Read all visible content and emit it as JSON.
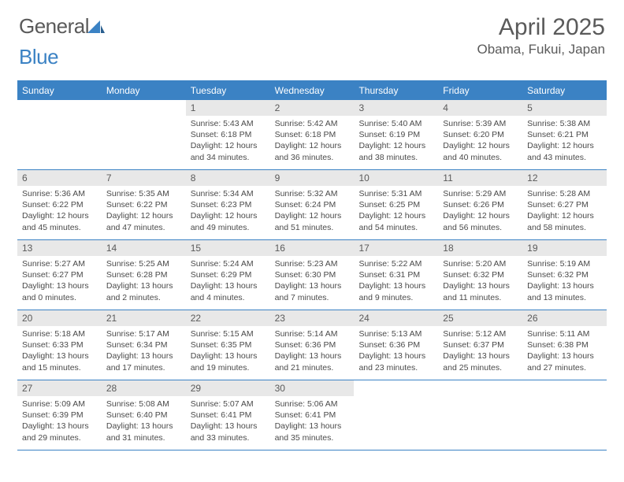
{
  "brand": {
    "part1": "General",
    "part2": "Blue"
  },
  "title": "April 2025",
  "location": "Obama, Fukui, Japan",
  "header_bg": "#3b82c4",
  "daynum_bg": "#e8e8e8",
  "weekdays": [
    "Sunday",
    "Monday",
    "Tuesday",
    "Wednesday",
    "Thursday",
    "Friday",
    "Saturday"
  ],
  "weeks": [
    [
      null,
      null,
      {
        "n": "1",
        "sr": "Sunrise: 5:43 AM",
        "ss": "Sunset: 6:18 PM",
        "dl": "Daylight: 12 hours and 34 minutes."
      },
      {
        "n": "2",
        "sr": "Sunrise: 5:42 AM",
        "ss": "Sunset: 6:18 PM",
        "dl": "Daylight: 12 hours and 36 minutes."
      },
      {
        "n": "3",
        "sr": "Sunrise: 5:40 AM",
        "ss": "Sunset: 6:19 PM",
        "dl": "Daylight: 12 hours and 38 minutes."
      },
      {
        "n": "4",
        "sr": "Sunrise: 5:39 AM",
        "ss": "Sunset: 6:20 PM",
        "dl": "Daylight: 12 hours and 40 minutes."
      },
      {
        "n": "5",
        "sr": "Sunrise: 5:38 AM",
        "ss": "Sunset: 6:21 PM",
        "dl": "Daylight: 12 hours and 43 minutes."
      }
    ],
    [
      {
        "n": "6",
        "sr": "Sunrise: 5:36 AM",
        "ss": "Sunset: 6:22 PM",
        "dl": "Daylight: 12 hours and 45 minutes."
      },
      {
        "n": "7",
        "sr": "Sunrise: 5:35 AM",
        "ss": "Sunset: 6:22 PM",
        "dl": "Daylight: 12 hours and 47 minutes."
      },
      {
        "n": "8",
        "sr": "Sunrise: 5:34 AM",
        "ss": "Sunset: 6:23 PM",
        "dl": "Daylight: 12 hours and 49 minutes."
      },
      {
        "n": "9",
        "sr": "Sunrise: 5:32 AM",
        "ss": "Sunset: 6:24 PM",
        "dl": "Daylight: 12 hours and 51 minutes."
      },
      {
        "n": "10",
        "sr": "Sunrise: 5:31 AM",
        "ss": "Sunset: 6:25 PM",
        "dl": "Daylight: 12 hours and 54 minutes."
      },
      {
        "n": "11",
        "sr": "Sunrise: 5:29 AM",
        "ss": "Sunset: 6:26 PM",
        "dl": "Daylight: 12 hours and 56 minutes."
      },
      {
        "n": "12",
        "sr": "Sunrise: 5:28 AM",
        "ss": "Sunset: 6:27 PM",
        "dl": "Daylight: 12 hours and 58 minutes."
      }
    ],
    [
      {
        "n": "13",
        "sr": "Sunrise: 5:27 AM",
        "ss": "Sunset: 6:27 PM",
        "dl": "Daylight: 13 hours and 0 minutes."
      },
      {
        "n": "14",
        "sr": "Sunrise: 5:25 AM",
        "ss": "Sunset: 6:28 PM",
        "dl": "Daylight: 13 hours and 2 minutes."
      },
      {
        "n": "15",
        "sr": "Sunrise: 5:24 AM",
        "ss": "Sunset: 6:29 PM",
        "dl": "Daylight: 13 hours and 4 minutes."
      },
      {
        "n": "16",
        "sr": "Sunrise: 5:23 AM",
        "ss": "Sunset: 6:30 PM",
        "dl": "Daylight: 13 hours and 7 minutes."
      },
      {
        "n": "17",
        "sr": "Sunrise: 5:22 AM",
        "ss": "Sunset: 6:31 PM",
        "dl": "Daylight: 13 hours and 9 minutes."
      },
      {
        "n": "18",
        "sr": "Sunrise: 5:20 AM",
        "ss": "Sunset: 6:32 PM",
        "dl": "Daylight: 13 hours and 11 minutes."
      },
      {
        "n": "19",
        "sr": "Sunrise: 5:19 AM",
        "ss": "Sunset: 6:32 PM",
        "dl": "Daylight: 13 hours and 13 minutes."
      }
    ],
    [
      {
        "n": "20",
        "sr": "Sunrise: 5:18 AM",
        "ss": "Sunset: 6:33 PM",
        "dl": "Daylight: 13 hours and 15 minutes."
      },
      {
        "n": "21",
        "sr": "Sunrise: 5:17 AM",
        "ss": "Sunset: 6:34 PM",
        "dl": "Daylight: 13 hours and 17 minutes."
      },
      {
        "n": "22",
        "sr": "Sunrise: 5:15 AM",
        "ss": "Sunset: 6:35 PM",
        "dl": "Daylight: 13 hours and 19 minutes."
      },
      {
        "n": "23",
        "sr": "Sunrise: 5:14 AM",
        "ss": "Sunset: 6:36 PM",
        "dl": "Daylight: 13 hours and 21 minutes."
      },
      {
        "n": "24",
        "sr": "Sunrise: 5:13 AM",
        "ss": "Sunset: 6:36 PM",
        "dl": "Daylight: 13 hours and 23 minutes."
      },
      {
        "n": "25",
        "sr": "Sunrise: 5:12 AM",
        "ss": "Sunset: 6:37 PM",
        "dl": "Daylight: 13 hours and 25 minutes."
      },
      {
        "n": "26",
        "sr": "Sunrise: 5:11 AM",
        "ss": "Sunset: 6:38 PM",
        "dl": "Daylight: 13 hours and 27 minutes."
      }
    ],
    [
      {
        "n": "27",
        "sr": "Sunrise: 5:09 AM",
        "ss": "Sunset: 6:39 PM",
        "dl": "Daylight: 13 hours and 29 minutes."
      },
      {
        "n": "28",
        "sr": "Sunrise: 5:08 AM",
        "ss": "Sunset: 6:40 PM",
        "dl": "Daylight: 13 hours and 31 minutes."
      },
      {
        "n": "29",
        "sr": "Sunrise: 5:07 AM",
        "ss": "Sunset: 6:41 PM",
        "dl": "Daylight: 13 hours and 33 minutes."
      },
      {
        "n": "30",
        "sr": "Sunrise: 5:06 AM",
        "ss": "Sunset: 6:41 PM",
        "dl": "Daylight: 13 hours and 35 minutes."
      },
      null,
      null,
      null
    ]
  ]
}
